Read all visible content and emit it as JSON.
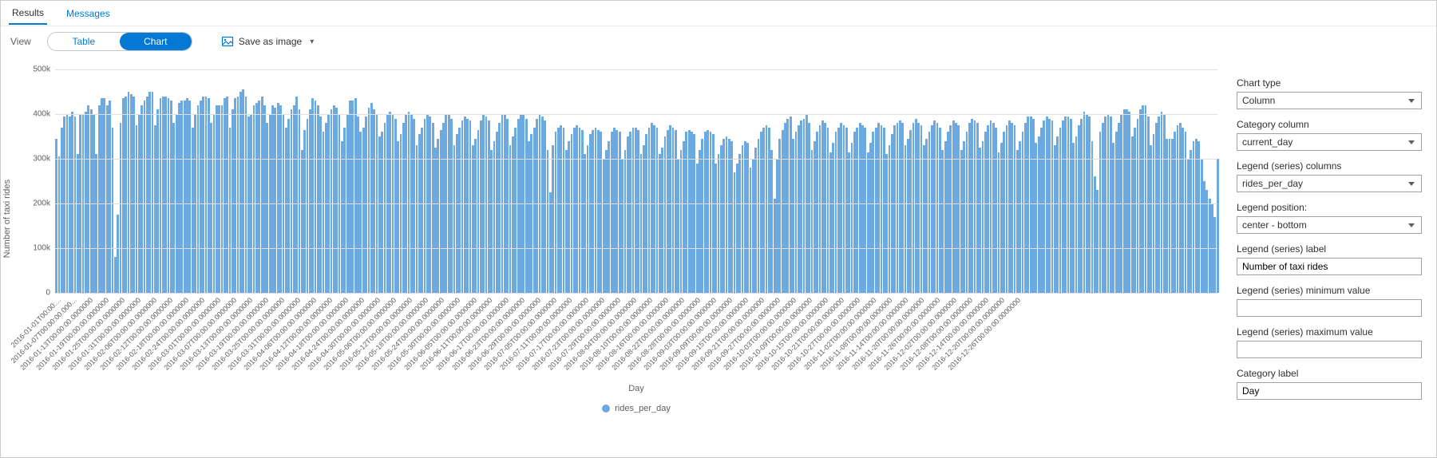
{
  "tabs": {
    "results": "Results",
    "messages": "Messages",
    "active": "results"
  },
  "toolbar": {
    "viewLabel": "View",
    "tableLabel": "Table",
    "chartLabel": "Chart",
    "activeView": "chart",
    "saveImageLabel": "Save as image"
  },
  "panel": {
    "chartType": {
      "label": "Chart type",
      "value": "Column"
    },
    "categoryColumn": {
      "label": "Category column",
      "value": "current_day"
    },
    "legendColumns": {
      "label": "Legend (series) columns",
      "value": "rides_per_day"
    },
    "legendPosition": {
      "label": "Legend position:",
      "value": "center - bottom"
    },
    "legendLabel": {
      "label": "Legend (series) label",
      "value": "Number of taxi rides"
    },
    "legendMin": {
      "label": "Legend (series) minimum value",
      "value": ""
    },
    "legendMax": {
      "label": "Legend (series) maximum value",
      "value": ""
    },
    "categoryLabel": {
      "label": "Category label",
      "value": "Day"
    }
  },
  "chart": {
    "type": "bar",
    "yTitle": "Number of taxi rides",
    "xTitle": "Day",
    "legendSeries": "rides_per_day",
    "barColor": "#6ca9e0",
    "gridColor": "#e1dfdd",
    "background": "#ffffff",
    "yMax": 500000,
    "yTicks": [
      0,
      100000,
      200000,
      300000,
      400000,
      500000
    ],
    "yTickLabels": [
      "0",
      "100k",
      "200k",
      "300k",
      "400k",
      "500k"
    ],
    "values": [
      345,
      305,
      370,
      395,
      400,
      395,
      405,
      395,
      310,
      400,
      400,
      405,
      420,
      410,
      400,
      310,
      420,
      435,
      435,
      420,
      430,
      370,
      80,
      175,
      380,
      435,
      440,
      450,
      445,
      440,
      375,
      400,
      420,
      430,
      440,
      450,
      450,
      375,
      410,
      435,
      440,
      440,
      435,
      430,
      380,
      400,
      425,
      430,
      430,
      435,
      430,
      370,
      400,
      420,
      430,
      440,
      440,
      435,
      380,
      400,
      420,
      420,
      420,
      435,
      440,
      370,
      410,
      435,
      440,
      450,
      455,
      440,
      395,
      400,
      420,
      425,
      430,
      440,
      420,
      380,
      400,
      420,
      415,
      425,
      420,
      400,
      370,
      390,
      410,
      420,
      440,
      410,
      320,
      365,
      390,
      410,
      435,
      430,
      420,
      395,
      360,
      380,
      400,
      410,
      420,
      415,
      400,
      340,
      370,
      400,
      430,
      430,
      435,
      395,
      360,
      370,
      395,
      415,
      425,
      410,
      400,
      350,
      360,
      380,
      400,
      405,
      400,
      390,
      340,
      355,
      380,
      400,
      405,
      400,
      390,
      330,
      355,
      370,
      390,
      400,
      395,
      380,
      325,
      345,
      365,
      380,
      400,
      400,
      390,
      330,
      355,
      370,
      385,
      395,
      390,
      385,
      330,
      345,
      365,
      385,
      400,
      395,
      385,
      320,
      340,
      360,
      380,
      400,
      400,
      390,
      330,
      350,
      370,
      390,
      400,
      400,
      390,
      340,
      355,
      370,
      390,
      400,
      395,
      385,
      320,
      225,
      330,
      360,
      370,
      375,
      370,
      320,
      340,
      355,
      370,
      375,
      370,
      365,
      310,
      330,
      355,
      365,
      370,
      365,
      360,
      300,
      320,
      340,
      360,
      370,
      365,
      360,
      300,
      320,
      350,
      360,
      370,
      370,
      365,
      310,
      330,
      355,
      370,
      380,
      375,
      370,
      310,
      325,
      350,
      365,
      375,
      370,
      365,
      300,
      320,
      340,
      360,
      365,
      360,
      355,
      290,
      320,
      345,
      360,
      365,
      360,
      355,
      290,
      310,
      330,
      345,
      350,
      345,
      340,
      270,
      290,
      310,
      330,
      340,
      335,
      280,
      300,
      325,
      345,
      360,
      370,
      375,
      370,
      320,
      210,
      300,
      345,
      365,
      380,
      390,
      395,
      345,
      360,
      375,
      385,
      390,
      400,
      380,
      320,
      340,
      360,
      375,
      385,
      380,
      370,
      315,
      335,
      360,
      370,
      380,
      375,
      370,
      315,
      335,
      360,
      370,
      380,
      375,
      370,
      315,
      335,
      360,
      370,
      380,
      375,
      370,
      310,
      330,
      355,
      375,
      380,
      385,
      380,
      330,
      345,
      365,
      380,
      390,
      380,
      375,
      330,
      345,
      360,
      375,
      385,
      380,
      370,
      320,
      340,
      360,
      375,
      385,
      380,
      375,
      320,
      340,
      360,
      380,
      390,
      385,
      380,
      325,
      340,
      360,
      375,
      385,
      380,
      370,
      315,
      335,
      360,
      375,
      385,
      380,
      375,
      320,
      340,
      360,
      380,
      395,
      395,
      390,
      335,
      350,
      370,
      385,
      395,
      390,
      385,
      330,
      350,
      370,
      385,
      395,
      395,
      390,
      335,
      350,
      375,
      390,
      405,
      400,
      395,
      340,
      260,
      230,
      360,
      380,
      395,
      400,
      395,
      335,
      360,
      380,
      400,
      410,
      410,
      405,
      350,
      370,
      390,
      410,
      420,
      420,
      395,
      330,
      355,
      380,
      395,
      405,
      400,
      345,
      345,
      345,
      360,
      375,
      380,
      370,
      360,
      300,
      320,
      340,
      345,
      340,
      300,
      250,
      230,
      210,
      200,
      170,
      300
    ],
    "xTickLabels": [
      "2016-01-01T00:00:...",
      "2016-01-07T00:00:00.000...",
      "2016-01-13T00:00:00.0000000",
      "2016-01-19T00:00:00.0000000",
      "2016-01-25T00:00:00.0000000",
      "2016-01-31T00:00:00.0000000",
      "2016-02-06T00:00:00.0000000",
      "2016-02-12T00:00:00.0000000",
      "2016-02-18T00:00:00.0000000",
      "2016-02-24T00:00:00.0000000",
      "2016-03-01T00:00:00.0000000",
      "2016-03-07T00:00:00.0000000",
      "2016-03-13T00:00:00.0000000",
      "2016-03-19T00:00:00.0000000",
      "2016-03-25T00:00:00.0000000",
      "2016-03-31T00:00:00.0000000",
      "2016-04-06T00:00:00.0000000",
      "2016-04-12T00:00:00.0000000",
      "2016-04-18T00:00:00.0000000",
      "2016-04-24T00:00:00.0000000",
      "2016-04-30T00:00:00.0000000",
      "2016-05-06T00:00:00.0000000",
      "2016-05-12T00:00:00.0000000",
      "2016-05-18T00:00:00.0000000",
      "2016-05-24T00:00:00.0000000",
      "2016-05-30T00:00:00.0000000",
      "2016-06-05T00:00:00.0000000",
      "2016-06-11T00:00:00.0000000",
      "2016-06-17T00:00:00.0000000",
      "2016-06-23T00:00:00.0000000",
      "2016-06-29T00:00:00.0000000",
      "2016-07-05T00:00:00.0000000",
      "2016-07-11T00:00:00.0000000",
      "2016-07-17T00:00:00.0000000",
      "2016-07-23T00:00:00.0000000",
      "2016-07-29T00:00:00.0000000",
      "2016-08-04T00:00:00.0000000",
      "2016-08-10T00:00:00.0000000",
      "2016-08-16T00:00:00.0000000",
      "2016-08-22T00:00:00.0000000",
      "2016-08-28T00:00:00.0000000",
      "2016-09-03T00:00:00.0000000",
      "2016-09-09T00:00:00.0000000",
      "2016-09-15T00:00:00.0000000",
      "2016-09-21T00:00:00.0000000",
      "2016-09-27T00:00:00.0000000",
      "2016-10-03T00:00:00.0000000",
      "2016-10-09T00:00:00.0000000",
      "2016-10-15T00:00:00.0000000",
      "2016-10-21T00:00:00.0000000",
      "2016-10-27T00:00:00.0000000",
      "2016-11-02T00:00:00.0000000",
      "2016-11-08T00:00:00.0000000",
      "2016-11-14T00:00:00.0000000",
      "2016-11-20T00:00:00.0000000",
      "2016-11-26T00:00:00.0000000",
      "2016-12-02T00:00:00.0000000",
      "2016-12-08T00:00:00.0000000",
      "2016-12-14T00:00:00.0000000",
      "2016-12-20T00:00:00.0000000",
      "2016-12-26T00:00:00.0000000"
    ]
  }
}
